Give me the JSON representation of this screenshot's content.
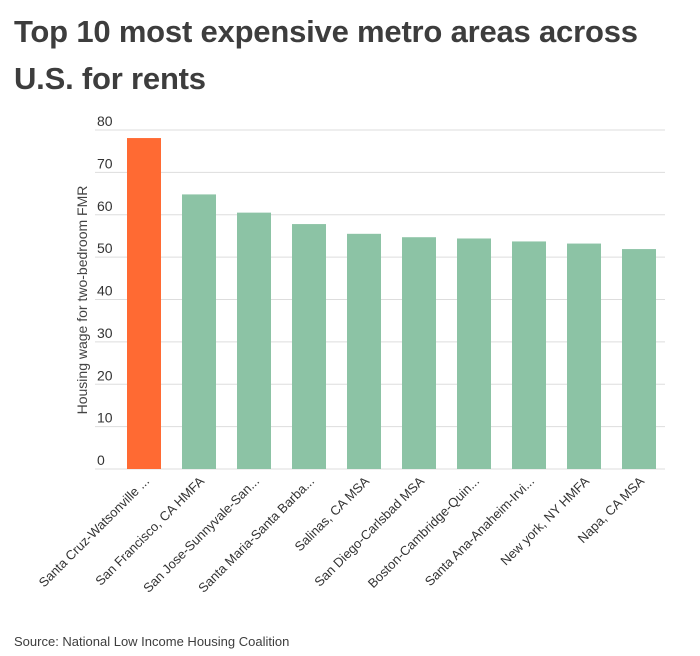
{
  "title": "Top 10 most expensive metro areas across U.S. for rents",
  "source": "Source: National Low Income Housing Coalition",
  "chart_data": {
    "type": "bar",
    "ylabel": "Housing wage for two-bedroom FMR",
    "xlabel": "",
    "ylim": [
      0,
      80
    ],
    "yticks": [
      0,
      10,
      20,
      30,
      40,
      50,
      60,
      70,
      80
    ],
    "grid": true,
    "categories": [
      "Santa Cruz-Watsonville ...",
      "San Francisco, CA HMFA",
      "San Jose-Sunnyvale-San...",
      "Santa Maria-Santa Barba...",
      "Salinas, CA MSA",
      "San Diego-Carlsbad MSA",
      "Boston-Cambridge-Quin...",
      "Santa Ana-Anaheim-Irvi...",
      "New york, NY HMFA",
      "Napa, CA MSA"
    ],
    "values": [
      78.1,
      64.8,
      60.5,
      57.8,
      55.5,
      54.7,
      54.4,
      53.7,
      53.2,
      51.9
    ],
    "colors": {
      "highlight": "#ff6a33",
      "default": "#8cc3a5",
      "grid": "#dddddd",
      "axis_text": "#333333"
    }
  }
}
